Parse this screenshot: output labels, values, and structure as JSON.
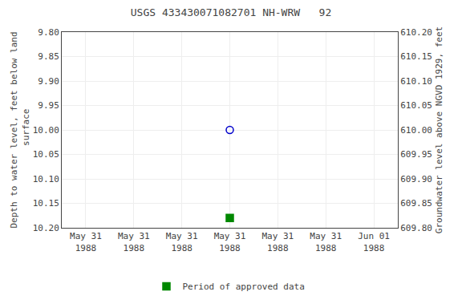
{
  "chart_data": {
    "type": "scatter",
    "title": "USGS 433430071082701 NH-WRW   92",
    "ylabel": "Depth to water level, feet below land\n surface",
    "y2label": "Groundwater level above NGVD 1929, feet",
    "categories": [
      "May 31\n1988",
      "May 31\n1988",
      "May 31\n1988",
      "May 31\n1988",
      "May 31\n1988",
      "May 31\n1988",
      "Jun 01\n1988"
    ],
    "series": [
      {
        "color": "#0000cc",
        "marker": "circle-open",
        "values": [
          null,
          null,
          null,
          10.0,
          null,
          null,
          null
        ]
      },
      {
        "name": "Period of approved data",
        "color": "#008800",
        "marker": "square",
        "values": [
          null,
          null,
          null,
          10.18,
          null,
          null,
          null
        ]
      }
    ],
    "ylim": [
      10.2,
      9.8
    ],
    "yticks": [
      {
        "value": 9.8,
        "label": "9.80"
      },
      9.85,
      {
        "value": 9.9,
        "label": "9.90"
      },
      9.95,
      {
        "value": 10.0,
        "label": "10.00"
      },
      10.05,
      {
        "value": 10.1,
        "label": "10.10"
      },
      10.15,
      {
        "value": 10.2,
        "label": "10.20"
      }
    ],
    "y2lim": [
      609.8,
      610.2
    ],
    "y2ticks": [
      {
        "value": 610.2,
        "label": "610.20"
      },
      610.15,
      {
        "value": 610.1,
        "label": "610.10"
      },
      610.05,
      {
        "value": 610.0,
        "label": "610.00"
      },
      609.95,
      {
        "value": 609.9,
        "label": "609.90"
      },
      609.85,
      {
        "value": 609.8,
        "label": "609.80"
      }
    ],
    "grid": true,
    "legend": "bottom"
  }
}
